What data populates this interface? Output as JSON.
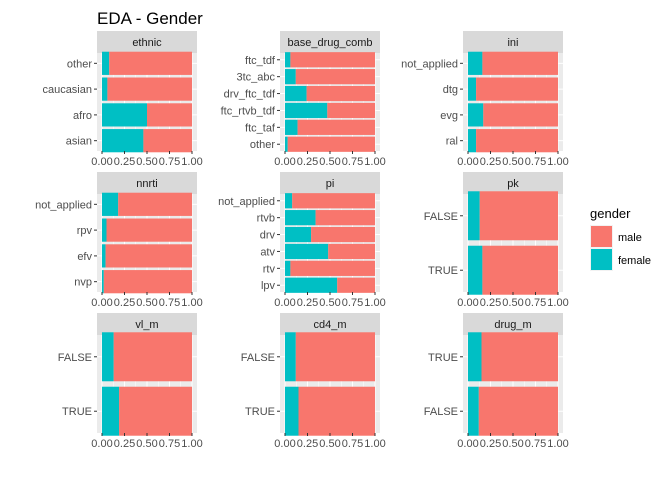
{
  "chart_data": {
    "type": "bar",
    "orientation": "horizontal",
    "stacked": "fill",
    "title": "EDA - Gender",
    "xlim": [
      0,
      1
    ],
    "x_ticks": [
      "0.00",
      "0.25",
      "0.50",
      "0.75",
      "1.00"
    ],
    "legend": {
      "title": "gender",
      "position": "right",
      "entries": [
        {
          "name": "male",
          "color": "#F8766D"
        },
        {
          "name": "female",
          "color": "#00BFC4"
        }
      ]
    },
    "colors": {
      "male": "#F8766D",
      "female": "#00BFC4",
      "panel": "#EBEBEB",
      "strip": "#D9D9D9",
      "grid": "#FFFFFF"
    },
    "grid": true,
    "facets": [
      {
        "name": "ethnic",
        "categories": [
          "other",
          "caucasian",
          "afro",
          "asian"
        ],
        "female": [
          0.08,
          0.06,
          0.5,
          0.46
        ]
      },
      {
        "name": "base_drug_comb",
        "categories": [
          "ftc_tdf",
          "3tc_abc",
          "drv_ftc_tdf",
          "ftc_rtvb_tdf",
          "ftc_taf",
          "other"
        ],
        "female": [
          0.06,
          0.12,
          0.24,
          0.47,
          0.14,
          0.03
        ]
      },
      {
        "name": "ini",
        "categories": [
          "not_applied",
          "dtg",
          "evg",
          "ral"
        ],
        "female": [
          0.16,
          0.09,
          0.17,
          0.09
        ]
      },
      {
        "name": "nnrti",
        "categories": [
          "not_applied",
          "rpv",
          "efv",
          "nvp"
        ],
        "female": [
          0.18,
          0.05,
          0.04,
          0.02
        ]
      },
      {
        "name": "pi",
        "categories": [
          "not_applied",
          "rtvb",
          "drv",
          "atv",
          "rtv",
          "lpv"
        ],
        "female": [
          0.08,
          0.34,
          0.29,
          0.48,
          0.06,
          0.58
        ]
      },
      {
        "name": "pk",
        "categories": [
          "FALSE",
          "TRUE"
        ],
        "female": [
          0.13,
          0.16
        ]
      },
      {
        "name": "vl_m",
        "categories": [
          "FALSE",
          "TRUE"
        ],
        "female": [
          0.13,
          0.19
        ]
      },
      {
        "name": "cd4_m",
        "categories": [
          "FALSE",
          "TRUE"
        ],
        "female": [
          0.12,
          0.15
        ]
      },
      {
        "name": "drug_m",
        "categories": [
          "TRUE",
          "FALSE"
        ],
        "female": [
          0.15,
          0.12
        ]
      }
    ]
  }
}
